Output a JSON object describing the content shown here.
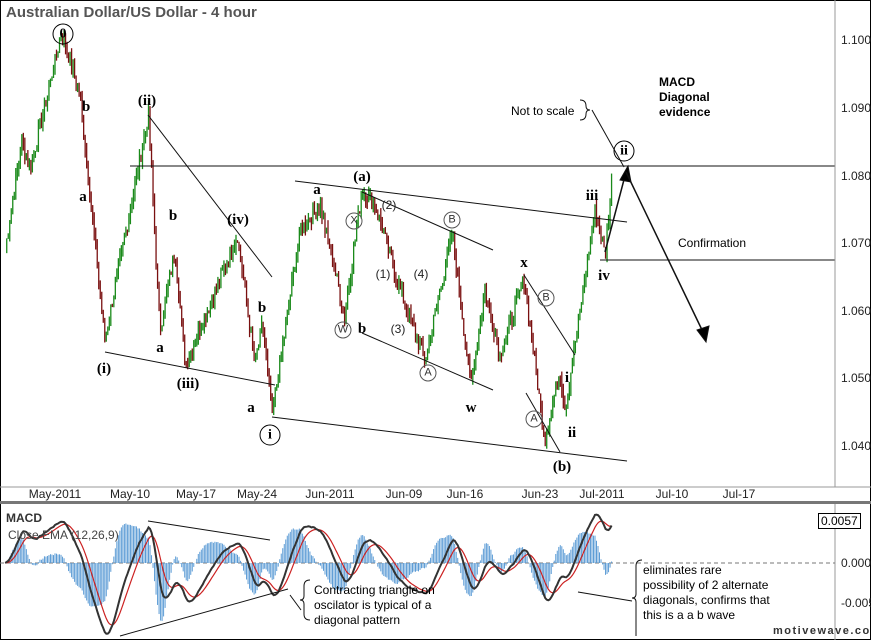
{
  "title": "Australian Dollar/US Dollar - 4 hour",
  "chart_data": {
    "type": "ohlc-bar",
    "title": "Australian Dollar/US Dollar - 4 hour",
    "timeframe": "4 hour",
    "ylim": [
      1.034,
      1.1055
    ],
    "y_ticks": [
      "1.10000",
      "1.09000",
      "1.08000",
      "1.07000",
      "1.06000",
      "1.05000",
      "1.04000"
    ],
    "x_ticks": [
      "May-2011",
      "May-10",
      "May-17",
      "May-24",
      "Jun-2011",
      "Jun-09",
      "Jun-16",
      "Jun-23",
      "Jul-2011",
      "Jul-10",
      "Jul-17"
    ],
    "up_color": "#1a8a1a",
    "down_color": "#7a1010",
    "price_pivots": [
      [
        "2011-04-26T12:00",
        1.069
      ],
      [
        "2011-04-28T08:00",
        1.0852
      ],
      [
        "2011-04-29T06:00",
        1.0808
      ],
      [
        "2011-05-02T18:00",
        1.1012
      ],
      [
        "2011-05-04T18:00",
        1.0919
      ],
      [
        "2011-05-07T12:00",
        1.0557
      ],
      [
        "2011-05-12T08:00",
        1.0889
      ],
      [
        "2011-05-13T14:00",
        1.0571
      ],
      [
        "2011-05-15T06:00",
        1.069
      ],
      [
        "2011-05-16T10:00",
        1.052
      ],
      [
        "2011-05-22T04:00",
        1.0712
      ],
      [
        "2011-05-24T02:00",
        1.052
      ],
      [
        "2011-05-24T22:00",
        1.0579
      ],
      [
        "2011-05-26T00:00",
        1.0446
      ],
      [
        "2011-05-29T02:00",
        1.0719
      ],
      [
        "2011-05-31T07:00",
        1.0756
      ],
      [
        "2011-06-03T00:00",
        1.0594
      ],
      [
        "2011-06-04T22:00",
        1.0778
      ],
      [
        "2011-06-06T10:00",
        1.0756
      ],
      [
        "2011-06-09T03:00",
        1.0631
      ],
      [
        "2011-06-11T22:00",
        1.0527
      ],
      [
        "2011-06-14T22:00",
        1.0716
      ],
      [
        "2011-06-16T22:00",
        1.049
      ],
      [
        "2011-06-18T12:00",
        1.0631
      ],
      [
        "2011-06-20T04:00",
        1.0535
      ],
      [
        "2011-06-22T20:00",
        1.0645
      ],
      [
        "2011-06-25T03:00",
        1.0409
      ],
      [
        "2011-06-26T19:00",
        1.0512
      ],
      [
        "2011-06-27T09:00",
        1.0453
      ],
      [
        "2011-06-30T16:00",
        1.0749
      ],
      [
        "2011-07-01T19:00",
        1.0682
      ],
      [
        "2011-07-02T12:00",
        1.0793
      ]
    ],
    "wave_labels": {
      "w0": "0",
      "b1": "b",
      "a1": "a",
      "ii": "(ii)",
      "b2": "b",
      "iv": "(iv)",
      "b3": "b",
      "a2": "a",
      "i": "(i)",
      "iii": "(iii)",
      "a3": "a",
      "ci": "i",
      "a4": "a",
      "pa": "(a)",
      "cX": "X",
      "p2": "(2)",
      "cB": "B",
      "p1": "(1)",
      "p4": "(4)",
      "cW": "W",
      "b4": "b",
      "p3": "(3)",
      "cA": "A",
      "w": "w",
      "x": "x",
      "cB2": "B",
      "i2": "i",
      "cA2": "A",
      "ii2": "ii",
      "pb": "(b)",
      "iii2": "iii",
      "iv2": "iv",
      "cii": "ii"
    },
    "annotations": {
      "macd_evidence": [
        "MACD",
        "Diagonal",
        "evidence"
      ],
      "not_to_scale": "Not to scale",
      "confirmation": "Confirmation"
    },
    "indicator": {
      "name": "MACD",
      "params": "Close EMA (12,26,9)",
      "y_ticks": [
        "0.0000",
        "-0.0050"
      ],
      "current_value": "0.0057",
      "macd_color": "#333333",
      "signal_color": "#cc2222",
      "histogram_color": "#5b9bd5",
      "annotations": {
        "triangle": "Contracting triangle on oscilator is typical of a diagonal pattern",
        "eliminates": "eliminates rare possibility of 2 alternate diagonals, confirms that this is a a b wave"
      }
    }
  },
  "watermark": "motivewave.com"
}
